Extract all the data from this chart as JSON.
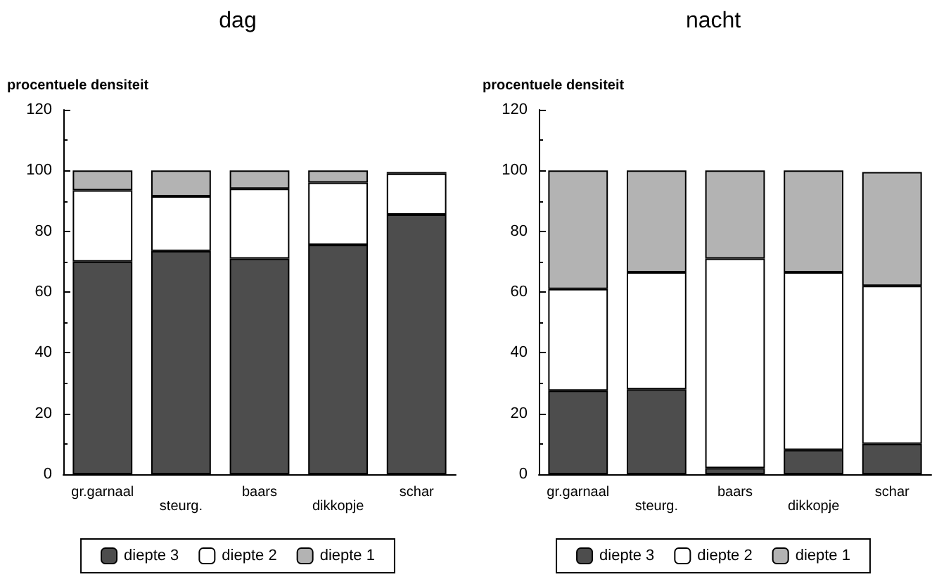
{
  "chart_data": [
    {
      "type": "bar",
      "title": "dag",
      "ylabel": "procentuele densiteit",
      "categories": [
        "gr.garnaal",
        "steurg.",
        "baars",
        "dikkopje",
        "schar"
      ],
      "stacked": true,
      "ylim": [
        0,
        120
      ],
      "yticks": [
        0,
        20,
        40,
        60,
        80,
        100,
        120
      ],
      "grid": false,
      "legend": "bottom",
      "series": [
        {
          "name": "diepte 3",
          "color": "#4d4d4d",
          "values": [
            70,
            73.5,
            71,
            75.5,
            85.5
          ]
        },
        {
          "name": "diepte 2",
          "color": "#ffffff",
          "values": [
            23.5,
            18,
            23,
            20.5,
            13.5
          ]
        },
        {
          "name": "diepte 1",
          "color": "#b3b3b3",
          "values": [
            6.5,
            8.5,
            6,
            4,
            0.5
          ]
        }
      ]
    },
    {
      "type": "bar",
      "title": "nacht",
      "ylabel": "procentuele densiteit",
      "categories": [
        "gr.garnaal",
        "steurg.",
        "baars",
        "dikkopje",
        "schar"
      ],
      "stacked": true,
      "ylim": [
        0,
        120
      ],
      "yticks": [
        0,
        20,
        40,
        60,
        80,
        100,
        120
      ],
      "grid": false,
      "legend": "bottom",
      "series": [
        {
          "name": "diepte 3",
          "color": "#4d4d4d",
          "values": [
            27.5,
            28,
            2,
            8,
            10
          ]
        },
        {
          "name": "diepte 2",
          "color": "#ffffff",
          "values": [
            33.5,
            38.5,
            69,
            58.5,
            52
          ]
        },
        {
          "name": "diepte 1",
          "color": "#b3b3b3",
          "values": [
            39,
            33.5,
            29,
            33.5,
            37.5
          ]
        }
      ]
    }
  ]
}
